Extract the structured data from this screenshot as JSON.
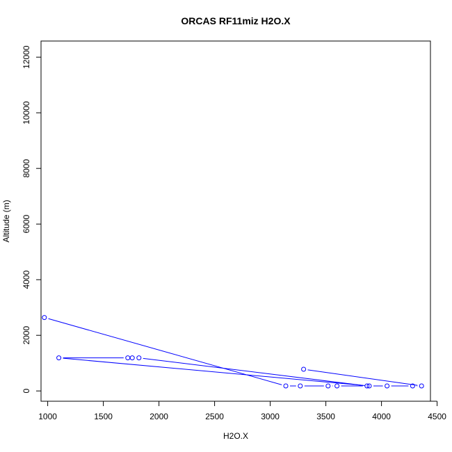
{
  "chart_data": {
    "type": "line",
    "title": "ORCAS RF11miz H2O.X",
    "xlabel": "H2O.X",
    "ylabel": "Altitude (m)",
    "xlim": [
      940,
      4440
    ],
    "ylim": [
      -370,
      12580
    ],
    "x_ticks": [
      1000,
      1500,
      2000,
      2500,
      3000,
      3500,
      4000,
      4500
    ],
    "y_ticks": [
      0,
      2000,
      4000,
      6000,
      8000,
      10000,
      12000
    ],
    "grid": false,
    "series": [
      {
        "color": "#0000ff",
        "marker": "open-circle",
        "points": [
          {
            "x": 970,
            "y": 2640
          },
          {
            "x": 3140,
            "y": 180
          },
          {
            "x": 3270,
            "y": 180
          },
          {
            "x": 3520,
            "y": 180
          },
          {
            "x": 3600,
            "y": 180
          },
          {
            "x": 3870,
            "y": 180
          },
          {
            "x": 1820,
            "y": 1190
          },
          {
            "x": 1760,
            "y": 1190
          },
          {
            "x": 1720,
            "y": 1190
          },
          {
            "x": 1100,
            "y": 1190
          },
          {
            "x": 3890,
            "y": 180
          },
          {
            "x": 4050,
            "y": 180
          },
          {
            "x": 4280,
            "y": 180
          },
          {
            "x": 4360,
            "y": 180
          },
          {
            "x": 3300,
            "y": 780
          }
        ]
      }
    ]
  }
}
